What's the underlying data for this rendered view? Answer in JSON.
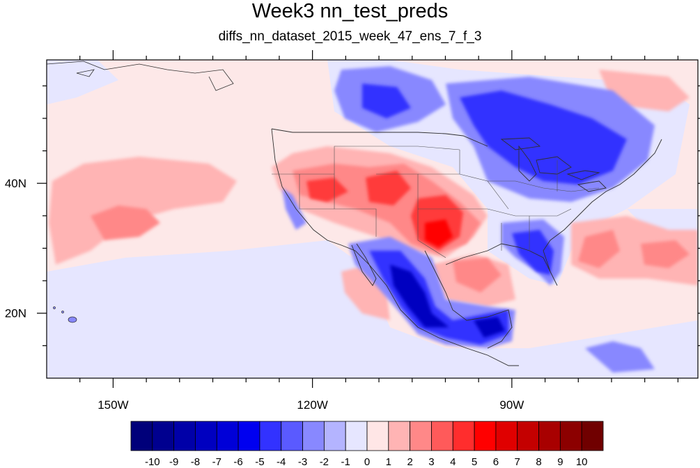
{
  "title": "Week3 nn_test_preds",
  "subtitle": "diffs_nn_dataset_2015_week_47_ens_7_f_3",
  "map": {
    "lon_range": [
      -160,
      -62
    ],
    "lat_range": [
      10,
      59
    ],
    "x_ticks": [
      {
        "lon": -150,
        "label": "150W"
      },
      {
        "lon": -120,
        "label": "120W"
      },
      {
        "lon": -90,
        "label": "90W"
      }
    ],
    "y_ticks": [
      {
        "lat": 40,
        "label": "40N"
      },
      {
        "lat": 20,
        "label": "20N"
      }
    ]
  },
  "colorbar": {
    "labels": [
      "-10",
      "-9",
      "-8",
      "-7",
      "-6",
      "-5",
      "-4",
      "-3",
      "-2",
      "-1",
      "0",
      "1",
      "2",
      "3",
      "4",
      "5",
      "6",
      "7",
      "8",
      "9",
      "10"
    ],
    "colors": [
      "#00007a",
      "#00008f",
      "#0000a8",
      "#0000c0",
      "#0000d8",
      "#0000f0",
      "#3232ff",
      "#5a5aff",
      "#8888ff",
      "#b4b4ff",
      "#e6e6ff",
      "#ffe6e6",
      "#ffb4b4",
      "#ff8888",
      "#ff5a5a",
      "#ff2d2d",
      "#ff0000",
      "#e00000",
      "#c40000",
      "#a80000",
      "#8c0000",
      "#700000"
    ]
  }
}
